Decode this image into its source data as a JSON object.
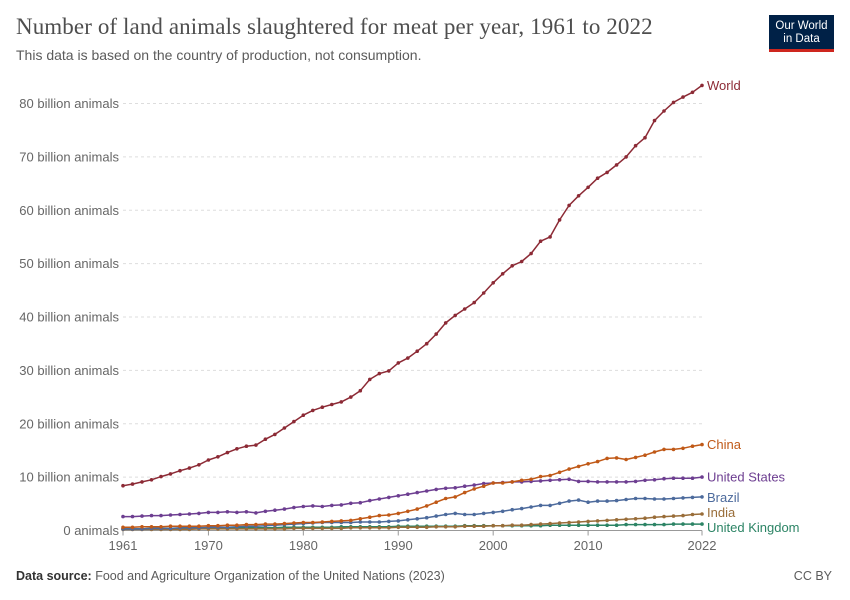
{
  "header": {
    "title": "Number of land animals slaughtered for meat per year, 1961 to 2022",
    "subtitle": "This data is based on the country of production, not consumption.",
    "logo_line1": "Our World",
    "logo_line2": "in Data"
  },
  "footer": {
    "source_label": "Data source:",
    "source_text": "Food and Agriculture Organization of the United Nations (2023)",
    "license": "CC BY"
  },
  "colors": {
    "logo_bg": "#002147",
    "logo_accent": "#ce261e",
    "grid": "#dddddd",
    "axis": "#999999"
  },
  "chart_data": {
    "type": "line",
    "ylabel": "",
    "xlabel": "",
    "ylim": [
      0,
      83
    ],
    "xlim": [
      1961,
      2022
    ],
    "grid": "horizontal dashed",
    "legend": "inline labels at line ends (right)",
    "y_ticks": [
      {
        "value": 0,
        "label": "0 animals"
      },
      {
        "value": 10,
        "label": "10 billion animals"
      },
      {
        "value": 20,
        "label": "20 billion animals"
      },
      {
        "value": 30,
        "label": "30 billion animals"
      },
      {
        "value": 40,
        "label": "40 billion animals"
      },
      {
        "value": 50,
        "label": "50 billion animals"
      },
      {
        "value": 60,
        "label": "60 billion animals"
      },
      {
        "value": 70,
        "label": "70 billion animals"
      },
      {
        "value": 80,
        "label": "80 billion animals"
      }
    ],
    "x_ticks": [
      {
        "value": 1961,
        "label": "1961"
      },
      {
        "value": 1970,
        "label": "1970"
      },
      {
        "value": 1980,
        "label": "1980"
      },
      {
        "value": 1990,
        "label": "1990"
      },
      {
        "value": 2000,
        "label": "2000"
      },
      {
        "value": 2010,
        "label": "2010"
      },
      {
        "value": 2022,
        "label": "2022"
      }
    ],
    "x": [
      1961,
      1962,
      1963,
      1964,
      1965,
      1966,
      1967,
      1968,
      1969,
      1970,
      1971,
      1972,
      1973,
      1974,
      1975,
      1976,
      1977,
      1978,
      1979,
      1980,
      1981,
      1982,
      1983,
      1984,
      1985,
      1986,
      1987,
      1988,
      1989,
      1990,
      1991,
      1992,
      1993,
      1994,
      1995,
      1996,
      1997,
      1998,
      1999,
      2000,
      2001,
      2002,
      2003,
      2004,
      2005,
      2006,
      2007,
      2008,
      2009,
      2010,
      2011,
      2012,
      2013,
      2014,
      2015,
      2016,
      2017,
      2018,
      2019,
      2020,
      2021,
      2022
    ],
    "series": [
      {
        "name": "World",
        "color": "#8c2a35",
        "values": [
          8.4,
          8.7,
          9.1,
          9.5,
          10.1,
          10.6,
          11.2,
          11.7,
          12.3,
          13.2,
          13.8,
          14.6,
          15.3,
          15.8,
          16.0,
          17.1,
          18.0,
          19.2,
          20.4,
          21.6,
          22.5,
          23.1,
          23.6,
          24.1,
          25.0,
          26.2,
          28.3,
          29.4,
          29.9,
          31.4,
          32.3,
          33.6,
          35.0,
          36.8,
          38.9,
          40.3,
          41.5,
          42.7,
          44.5,
          46.4,
          48.1,
          49.6,
          50.4,
          51.9,
          54.2,
          55.0,
          58.2,
          60.9,
          62.7,
          64.3,
          66.0,
          67.1,
          68.5,
          70.0,
          72.1,
          73.6,
          76.8,
          78.6,
          80.2,
          81.2,
          82.1,
          83.4
        ]
      },
      {
        "name": "China",
        "color": "#c05917",
        "values": [
          0.6,
          0.6,
          0.7,
          0.7,
          0.7,
          0.8,
          0.8,
          0.8,
          0.8,
          0.9,
          0.9,
          1.0,
          1.0,
          1.1,
          1.1,
          1.2,
          1.2,
          1.3,
          1.4,
          1.5,
          1.5,
          1.6,
          1.7,
          1.8,
          1.9,
          2.2,
          2.5,
          2.8,
          2.9,
          3.2,
          3.6,
          4.0,
          4.6,
          5.3,
          6.0,
          6.3,
          7.1,
          7.8,
          8.3,
          8.9,
          8.9,
          9.1,
          9.4,
          9.6,
          10.1,
          10.3,
          10.9,
          11.5,
          12.0,
          12.5,
          12.9,
          13.5,
          13.6,
          13.3,
          13.7,
          14.1,
          14.7,
          15.2,
          15.2,
          15.4,
          15.8,
          16.1
        ]
      },
      {
        "name": "United States",
        "color": "#6d3e91",
        "values": [
          2.6,
          2.6,
          2.7,
          2.8,
          2.8,
          2.9,
          3.0,
          3.1,
          3.2,
          3.4,
          3.4,
          3.5,
          3.4,
          3.5,
          3.3,
          3.6,
          3.8,
          4.0,
          4.3,
          4.5,
          4.6,
          4.5,
          4.7,
          4.8,
          5.1,
          5.2,
          5.6,
          5.9,
          6.2,
          6.5,
          6.8,
          7.1,
          7.4,
          7.7,
          7.9,
          8.0,
          8.3,
          8.5,
          8.8,
          8.9,
          9.0,
          9.1,
          9.1,
          9.2,
          9.3,
          9.4,
          9.5,
          9.6,
          9.2,
          9.2,
          9.1,
          9.1,
          9.1,
          9.1,
          9.2,
          9.4,
          9.5,
          9.7,
          9.8,
          9.8,
          9.8,
          10.0
        ]
      },
      {
        "name": "Brazil",
        "color": "#4c6a9c",
        "values": [
          0.3,
          0.3,
          0.3,
          0.4,
          0.4,
          0.4,
          0.5,
          0.5,
          0.5,
          0.6,
          0.6,
          0.6,
          0.7,
          0.8,
          0.8,
          0.9,
          1.0,
          1.1,
          1.2,
          1.3,
          1.4,
          1.5,
          1.5,
          1.5,
          1.5,
          1.6,
          1.6,
          1.6,
          1.7,
          1.8,
          2.0,
          2.2,
          2.4,
          2.7,
          3.0,
          3.2,
          3.0,
          3.0,
          3.2,
          3.4,
          3.6,
          3.9,
          4.1,
          4.4,
          4.7,
          4.7,
          5.1,
          5.5,
          5.7,
          5.3,
          5.5,
          5.5,
          5.6,
          5.8,
          6.0,
          6.0,
          5.9,
          5.9,
          6.0,
          6.1,
          6.2,
          6.3
        ]
      },
      {
        "name": "India",
        "color": "#996d39",
        "values": [
          0.2,
          0.2,
          0.2,
          0.2,
          0.2,
          0.2,
          0.2,
          0.2,
          0.3,
          0.3,
          0.3,
          0.3,
          0.3,
          0.3,
          0.3,
          0.3,
          0.3,
          0.3,
          0.4,
          0.4,
          0.4,
          0.4,
          0.4,
          0.4,
          0.5,
          0.5,
          0.5,
          0.5,
          0.5,
          0.6,
          0.6,
          0.6,
          0.6,
          0.7,
          0.7,
          0.7,
          0.8,
          0.8,
          0.8,
          0.9,
          0.9,
          1.0,
          1.0,
          1.1,
          1.2,
          1.3,
          1.4,
          1.5,
          1.6,
          1.7,
          1.8,
          1.9,
          2.0,
          2.1,
          2.2,
          2.3,
          2.5,
          2.6,
          2.7,
          2.8,
          3.0,
          3.1
        ]
      },
      {
        "name": "United Kingdom",
        "color": "#2c8465",
        "values": [
          0.3,
          0.3,
          0.3,
          0.4,
          0.4,
          0.4,
          0.4,
          0.4,
          0.5,
          0.5,
          0.5,
          0.5,
          0.5,
          0.5,
          0.5,
          0.5,
          0.5,
          0.6,
          0.6,
          0.6,
          0.6,
          0.6,
          0.6,
          0.7,
          0.7,
          0.7,
          0.7,
          0.7,
          0.7,
          0.8,
          0.8,
          0.8,
          0.8,
          0.8,
          0.8,
          0.8,
          0.9,
          0.9,
          0.9,
          0.9,
          0.9,
          0.9,
          0.9,
          0.9,
          0.9,
          1.0,
          1.0,
          1.0,
          1.0,
          1.0,
          1.0,
          1.0,
          1.0,
          1.1,
          1.1,
          1.1,
          1.1,
          1.1,
          1.2,
          1.2,
          1.2,
          1.2
        ]
      }
    ]
  }
}
